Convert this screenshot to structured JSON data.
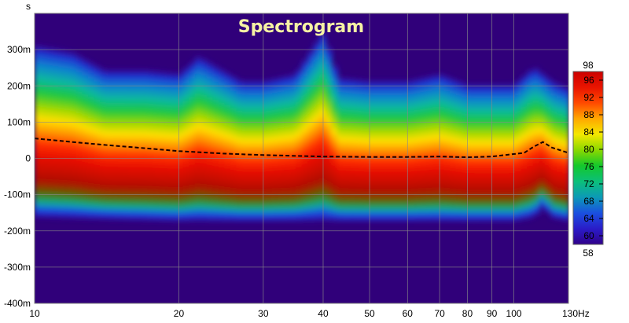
{
  "chart_data": {
    "type": "heatmap",
    "title": "Spectrogram",
    "y_unit": "s",
    "x_unit": "Hz",
    "x_scale": "log",
    "xlim": [
      10,
      130
    ],
    "ylim": [
      -0.4,
      0.4
    ],
    "x_ticks": [
      {
        "value": 10,
        "label": "10"
      },
      {
        "value": 20,
        "label": "20"
      },
      {
        "value": 30,
        "label": "30"
      },
      {
        "value": 40,
        "label": "40"
      },
      {
        "value": 50,
        "label": "50"
      },
      {
        "value": 60,
        "label": "60"
      },
      {
        "value": 70,
        "label": "70"
      },
      {
        "value": 80,
        "label": "80"
      },
      {
        "value": 90,
        "label": "90"
      },
      {
        "value": 100,
        "label": "100"
      },
      {
        "value": 130,
        "label": "130Hz"
      }
    ],
    "y_ticks": [
      {
        "value": 0.3,
        "label": "300m"
      },
      {
        "value": 0.2,
        "label": "200m"
      },
      {
        "value": 0.1,
        "label": "100m"
      },
      {
        "value": 0,
        "label": "0"
      },
      {
        "value": -0.1,
        "label": "-100m"
      },
      {
        "value": -0.2,
        "label": "-200m"
      },
      {
        "value": -0.3,
        "label": "-300m"
      },
      {
        "value": -0.4,
        "label": "-400m"
      }
    ],
    "grid": true,
    "colorbar": {
      "min": 58,
      "max": 98,
      "tick_labels": [
        "96",
        "92",
        "88",
        "84",
        "80",
        "76",
        "72",
        "68",
        "64",
        "60"
      ],
      "tick_values": [
        96,
        92,
        88,
        84,
        80,
        76,
        72,
        68,
        64,
        60
      ],
      "min_label": "58",
      "max_label": "98",
      "colors": [
        "#30008a",
        "#2a1cc8",
        "#1a50e0",
        "#0c9ab6",
        "#0cbf7a",
        "#14c82c",
        "#8ad800",
        "#f4e800",
        "#ffa800",
        "#ff4a00",
        "#e81400",
        "#cc0000"
      ]
    },
    "peak_delay_series": {
      "x": [
        10,
        12,
        14,
        17,
        20,
        25,
        30,
        40,
        50,
        60,
        70,
        80,
        90,
        100,
        105,
        110,
        115,
        120,
        130
      ],
      "y": [
        0.055,
        0.045,
        0.037,
        0.028,
        0.02,
        0.013,
        0.009,
        0.005,
        0.004,
        0.004,
        0.005,
        0.003,
        0.005,
        0.012,
        0.015,
        0.032,
        0.045,
        0.03,
        0.015
      ]
    },
    "background_color": "#30007a"
  }
}
